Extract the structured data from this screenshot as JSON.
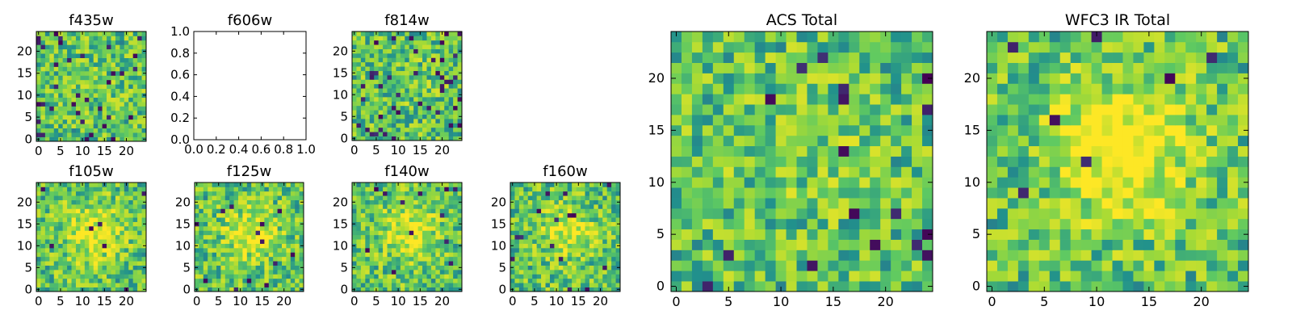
{
  "figure": {
    "colormap": "viridis",
    "colormap_stops": [
      "#440154",
      "#3b528b",
      "#21918c",
      "#5ec962",
      "#a8db34",
      "#fde725"
    ]
  },
  "chart_data": [
    {
      "id": "f435w",
      "type": "heatmap",
      "title": "f435w",
      "grid": [
        25,
        25
      ],
      "xlim": [
        -0.5,
        24.5
      ],
      "ylim": [
        -0.5,
        24.5
      ],
      "xticks": [
        0,
        5,
        10,
        15,
        20
      ],
      "yticks": [
        0,
        5,
        10,
        15,
        20
      ],
      "xtick_labels": [
        "0",
        "5",
        "10",
        "15",
        "20"
      ],
      "ytick_labels": [
        "0",
        "5",
        "10",
        "15",
        "20"
      ],
      "pattern": "noise",
      "seed": 11,
      "blob": 0.05,
      "dark_rate": 0.05
    },
    {
      "id": "f606w",
      "type": "empty",
      "title": "f606w",
      "xlim": [
        0.0,
        1.0
      ],
      "ylim": [
        0.0,
        1.0
      ],
      "xticks": [
        0.0,
        0.2,
        0.4,
        0.6,
        0.8,
        1.0
      ],
      "yticks": [
        0.0,
        0.2,
        0.4,
        0.6,
        0.8,
        1.0
      ],
      "xtick_labels": [
        "0.0",
        "0.2",
        "0.4",
        "0.6",
        "0.8",
        "1.0"
      ],
      "ytick_labels": [
        "0.0",
        "0.2",
        "0.4",
        "0.6",
        "0.8",
        "1.0"
      ]
    },
    {
      "id": "f814w",
      "type": "heatmap",
      "title": "f814w",
      "grid": [
        25,
        25
      ],
      "xlim": [
        -0.5,
        24.5
      ],
      "ylim": [
        -0.5,
        24.5
      ],
      "xticks": [
        0,
        5,
        10,
        15,
        20
      ],
      "yticks": [
        0,
        5,
        10,
        15,
        20
      ],
      "xtick_labels": [
        "0",
        "5",
        "10",
        "15",
        "20"
      ],
      "ytick_labels": [
        "0",
        "5",
        "10",
        "15",
        "20"
      ],
      "pattern": "noise",
      "seed": 23,
      "blob": 0.05,
      "dark_rate": 0.06
    },
    {
      "id": "f105w",
      "type": "heatmap",
      "title": "f105w",
      "grid": [
        25,
        25
      ],
      "xlim": [
        -0.5,
        24.5
      ],
      "ylim": [
        -0.5,
        24.5
      ],
      "xticks": [
        0,
        5,
        10,
        15,
        20
      ],
      "yticks": [
        0,
        5,
        10,
        15,
        20
      ],
      "xtick_labels": [
        "0",
        "5",
        "10",
        "15",
        "20"
      ],
      "ytick_labels": [
        "0",
        "5",
        "10",
        "15",
        "20"
      ],
      "pattern": "source",
      "seed": 37,
      "blob": 0.35,
      "dark_rate": 0.015
    },
    {
      "id": "f125w",
      "type": "heatmap",
      "title": "f125w",
      "grid": [
        25,
        25
      ],
      "xlim": [
        -0.5,
        24.5
      ],
      "ylim": [
        -0.5,
        24.5
      ],
      "xticks": [
        0,
        5,
        10,
        15,
        20
      ],
      "yticks": [
        0,
        5,
        10,
        15,
        20
      ],
      "xtick_labels": [
        "0",
        "5",
        "10",
        "15",
        "20"
      ],
      "ytick_labels": [
        "0",
        "5",
        "10",
        "15",
        "20"
      ],
      "pattern": "source",
      "seed": 41,
      "blob": 0.3,
      "dark_rate": 0.02
    },
    {
      "id": "f140w",
      "type": "heatmap",
      "title": "f140w",
      "grid": [
        25,
        25
      ],
      "xlim": [
        -0.5,
        24.5
      ],
      "ylim": [
        -0.5,
        24.5
      ],
      "xticks": [
        0,
        5,
        10,
        15,
        20
      ],
      "yticks": [
        0,
        5,
        10,
        15,
        20
      ],
      "xtick_labels": [
        "0",
        "5",
        "10",
        "15",
        "20"
      ],
      "ytick_labels": [
        "0",
        "5",
        "10",
        "15",
        "20"
      ],
      "pattern": "source",
      "seed": 53,
      "blob": 0.3,
      "dark_rate": 0.02
    },
    {
      "id": "f160w",
      "type": "heatmap",
      "title": "f160w",
      "grid": [
        25,
        25
      ],
      "xlim": [
        -0.5,
        24.5
      ],
      "ylim": [
        -0.5,
        24.5
      ],
      "xticks": [
        0,
        5,
        10,
        15,
        20
      ],
      "yticks": [
        0,
        5,
        10,
        15,
        20
      ],
      "xtick_labels": [
        "0",
        "5",
        "10",
        "15",
        "20"
      ],
      "ytick_labels": [
        "0",
        "5",
        "10",
        "15",
        "20"
      ],
      "pattern": "source",
      "seed": 67,
      "blob": 0.28,
      "dark_rate": 0.02
    },
    {
      "id": "acs_total",
      "type": "heatmap",
      "title": "ACS Total",
      "grid": [
        25,
        25
      ],
      "xlim": [
        -0.5,
        24.5
      ],
      "ylim": [
        -0.5,
        24.5
      ],
      "xticks": [
        0,
        5,
        10,
        15,
        20
      ],
      "yticks": [
        0,
        5,
        10,
        15,
        20
      ],
      "xtick_labels": [
        "0",
        "5",
        "10",
        "15",
        "20"
      ],
      "ytick_labels": [
        "0",
        "5",
        "10",
        "15",
        "20"
      ],
      "pattern": "noise",
      "seed": 79,
      "blob": 0.08,
      "dark_rate": 0.035
    },
    {
      "id": "wfc3_ir_total",
      "type": "heatmap",
      "title": "WFC3 IR Total",
      "grid": [
        25,
        25
      ],
      "xlim": [
        -0.5,
        24.5
      ],
      "ylim": [
        -0.5,
        24.5
      ],
      "xticks": [
        0,
        5,
        10,
        15,
        20
      ],
      "yticks": [
        0,
        5,
        10,
        15,
        20
      ],
      "xtick_labels": [
        "0",
        "5",
        "10",
        "15",
        "20"
      ],
      "ytick_labels": [
        "0",
        "5",
        "10",
        "15",
        "20"
      ],
      "pattern": "source",
      "seed": 97,
      "blob": 0.45,
      "dark_rate": 0.01
    }
  ]
}
